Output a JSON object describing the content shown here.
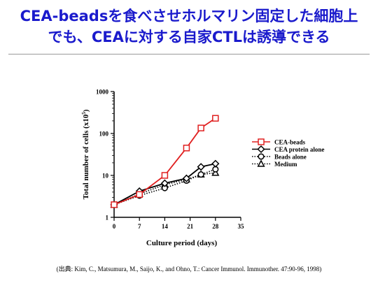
{
  "slide": {
    "title_line1": "CEA-beadsを食べさせホルマリン固定した細胞上",
    "title_line2": "でも、CEAに対する自家CTLは誘導できる",
    "citation": "(出典: Kim, C., Matsumura, M., Saijo, K., and Ohno, T.: Cancer Immunol. Immunother. 47:90-96, 1998)"
  },
  "colors": {
    "title": "#1a1acc",
    "cea_beads": "#e02020",
    "other_series": "#000000"
  },
  "chart_data": {
    "type": "line",
    "ylabel": "Total number of cells (x10^5)",
    "ylabel_main": "Total number of cells (x10",
    "ylabel_exp": "5",
    "ylabel_end": ")",
    "xlabel": "Culture period (days)",
    "xlim": [
      0,
      35
    ],
    "ylim": [
      1,
      1000
    ],
    "yscale": "log",
    "grid": false,
    "legend_position": "right",
    "x_ticks": [
      0,
      7,
      14,
      21,
      28,
      35
    ],
    "y_ticks": [
      1,
      10,
      100,
      1000
    ],
    "series": [
      {
        "name": "CEA-beads",
        "style": "solid",
        "color": "#e02020",
        "marker": "square",
        "x": [
          0,
          7,
          14,
          20,
          24,
          28
        ],
        "y": [
          2,
          3.5,
          10,
          45,
          135,
          230
        ]
      },
      {
        "name": "CEA protein alone",
        "style": "solid",
        "color": "#000000",
        "marker": "diamond",
        "x": [
          0,
          7,
          14,
          20,
          24,
          28
        ],
        "y": [
          2,
          4.2,
          6.5,
          8.5,
          16,
          19
        ]
      },
      {
        "name": "Beads alone",
        "style": "dotted",
        "color": "#000000",
        "marker": "circle",
        "x": [
          0,
          7,
          14,
          20,
          24,
          28
        ],
        "y": [
          2,
          3.3,
          5,
          7.5,
          10.5,
          14
        ]
      },
      {
        "name": "Medium",
        "style": "dotted",
        "color": "#000000",
        "marker": "triangle",
        "x": [
          0,
          7,
          14,
          20,
          24,
          28
        ],
        "y": [
          2,
          3.6,
          6,
          8,
          10.5,
          11.5
        ]
      }
    ]
  }
}
